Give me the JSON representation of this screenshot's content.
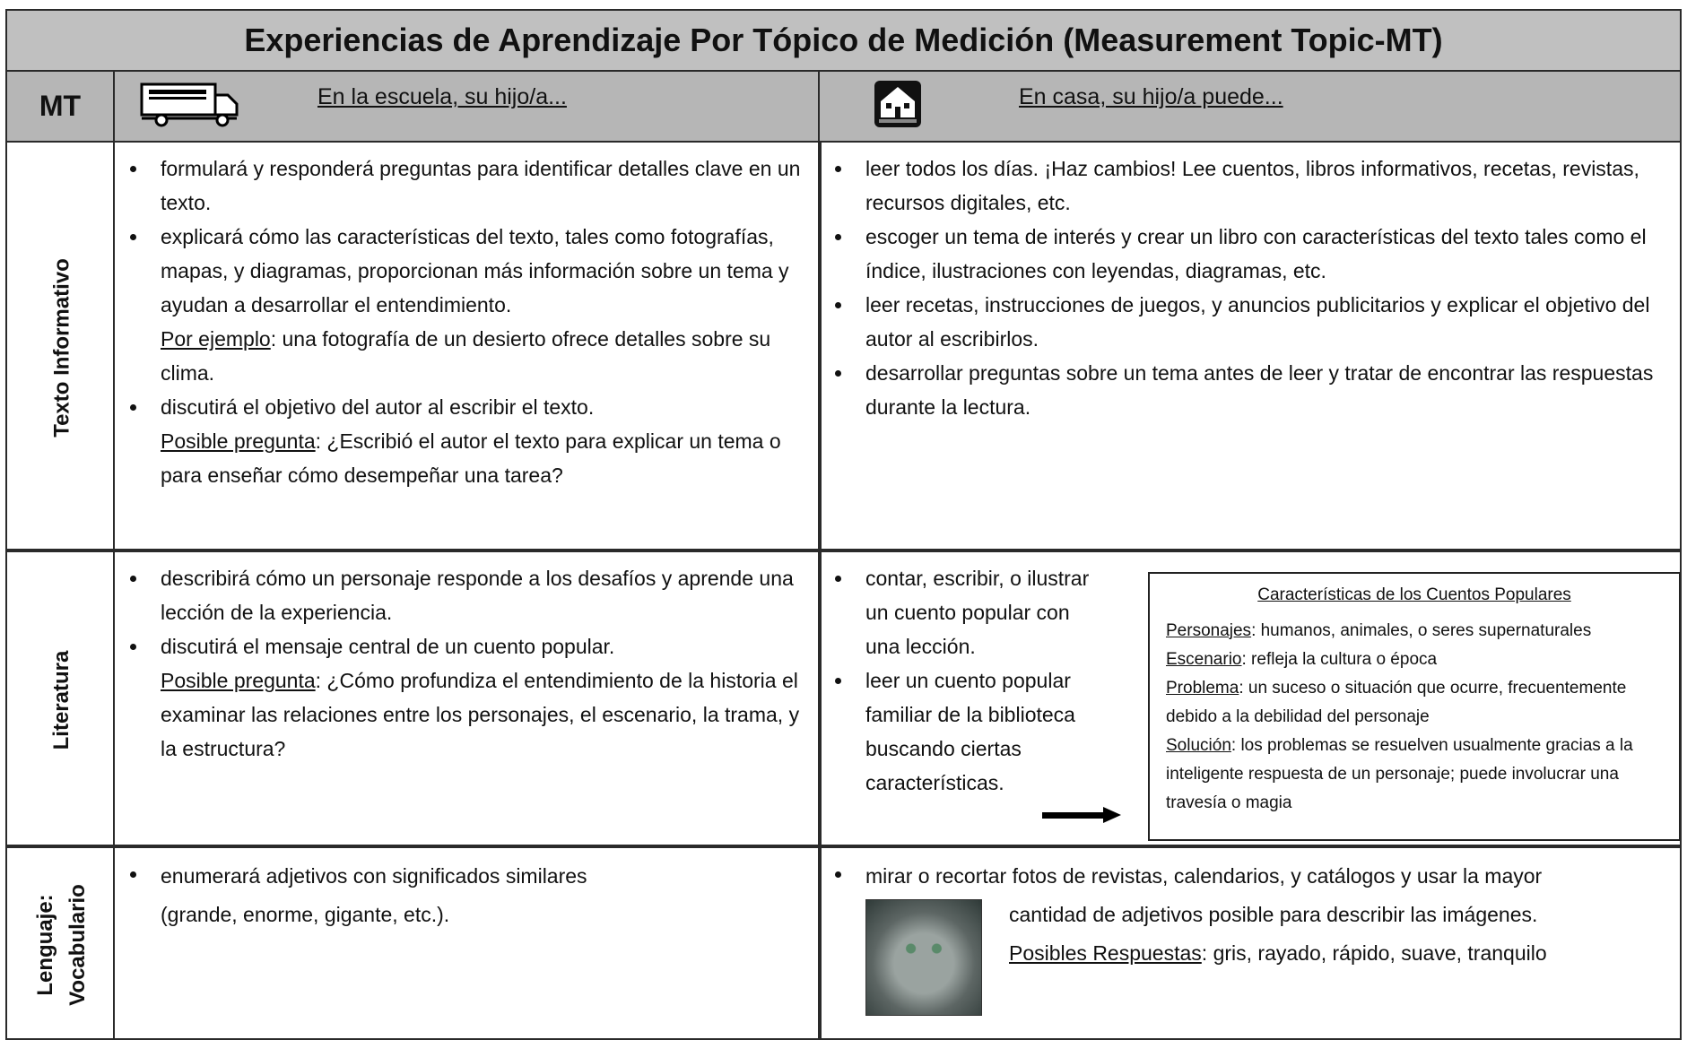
{
  "title": "Experiencias de Aprendizaje Por Tópico de Medición (Measurement Topic-MT)",
  "header": {
    "mt": "MT",
    "school": "En la escuela, su hijo/a...",
    "home": "En casa, su hijo/a puede..."
  },
  "rows": [
    {
      "topic": "Texto Informativo",
      "school": [
        {
          "text": "formulará y responderá preguntas para identificar detalles clave en un texto."
        },
        {
          "text": "explicará cómo las características del texto, tales como fotografías, mapas, y diagramas, proporcionan más información sobre un tema y ayudan a desarrollar el entendimiento.",
          "note": {
            "label": "Por ejemplo",
            "text": ": una fotografía de un desierto ofrece detalles sobre su clima."
          }
        },
        {
          "text": "discutirá el objetivo del autor al escribir el texto.",
          "note": {
            "label": "Posible pregunta",
            "text": ": ¿Escribió el autor el texto para explicar un tema o para enseñar cómo desempeñar una tarea?"
          }
        }
      ],
      "home": [
        {
          "text": "leer todos los días.  ¡Haz cambios!  Lee cuentos, libros informativos, recetas, revistas, recursos digitales, etc."
        },
        {
          "text": "escoger un tema de interés y crear un libro con características del texto tales como el índice, ilustraciones con leyendas, diagramas, etc."
        },
        {
          "text": "leer recetas, instrucciones de juegos, y anuncios publicitarios y explicar el objetivo del autor al escribirlos."
        },
        {
          "text": "desarrollar preguntas sobre un tema antes de leer y tratar de encontrar las respuestas durante la lectura."
        }
      ]
    },
    {
      "topic": "Literatura",
      "school": [
        {
          "text": "describirá cómo un personaje responde a los desafíos y aprende una lección de la experiencia."
        },
        {
          "text": "discutirá el mensaje central de un cuento popular.",
          "note": {
            "label": "Posible pregunta",
            "text": ": ¿Cómo profundiza el entendimiento de la historia el examinar las relaciones entre los personajes, el escenario, la trama, y la estructura?"
          }
        }
      ],
      "home": [
        {
          "text": "contar, escribir, o ilustrar un cuento popular con una lección."
        },
        {
          "text": "leer un cuento popular familiar de la biblioteca buscando ciertas características."
        }
      ],
      "box": {
        "title": "Características de los Cuentos Populares",
        "items": [
          {
            "label": "Personajes",
            "text": ": humanos, animales, o seres supernaturales"
          },
          {
            "label": "Escenario",
            "text": ": refleja la cultura o época"
          },
          {
            "label": "Problema",
            "text": ": un suceso o situación que ocurre, frecuentemente debido a la debilidad del personaje"
          },
          {
            "label": "Solución",
            "text": ": los problemas se resuelven usualmente gracias a la inteligente respuesta de un personaje; puede involucrar una travesía o magia"
          }
        ]
      }
    },
    {
      "topic": "Lenguaje: Vocabulario",
      "school": [
        {
          "lines": [
            "enumerará adjetivos con significados similares",
            "(grande, enorme, gigante, etc.)."
          ]
        }
      ],
      "home": [
        {
          "lines": [
            "mirar o recortar fotos de revistas, calendarios, y catálogos y usar la mayor",
            "cantidad de adjetivos posible para describir las imágenes."
          ],
          "note": {
            "label": "Posibles Respuestas",
            "text": ": gris, rayado, rápido, suave, tranquilo"
          }
        }
      ]
    }
  ]
}
